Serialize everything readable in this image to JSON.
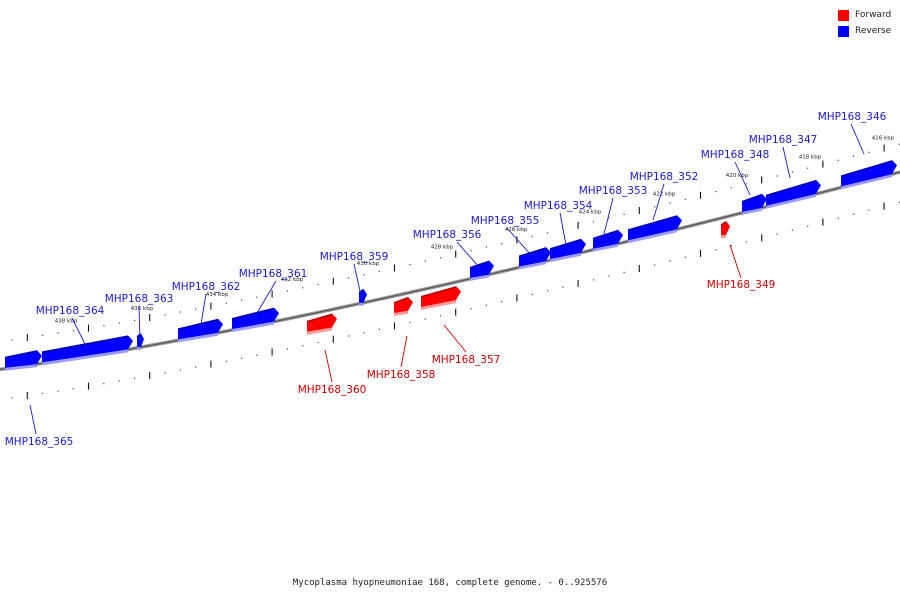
{
  "legend": {
    "forward_label": "Forward",
    "reverse_label": "Reverse",
    "forward_color": "#ff0000",
    "reverse_color": "#0000ff"
  },
  "caption": "Mycoplasma hyopneumoniae 168, complete genome. - 0..925576",
  "ticks": [
    {
      "label": "416 kbp"
    },
    {
      "label": "418 kbp"
    },
    {
      "label": "420 kbp"
    },
    {
      "label": "422 kbp"
    },
    {
      "label": "424 kbp"
    },
    {
      "label": "426 kbp"
    },
    {
      "label": "428 kbp"
    },
    {
      "label": "430 kbp"
    },
    {
      "label": "432 kbp"
    },
    {
      "label": "434 kbp"
    },
    {
      "label": "436 kbp"
    },
    {
      "label": "438 kbp"
    }
  ],
  "genes": [
    {
      "name": "MHP168_346",
      "strand": "reverse"
    },
    {
      "name": "MHP168_347",
      "strand": "reverse"
    },
    {
      "name": "MHP168_348",
      "strand": "reverse"
    },
    {
      "name": "MHP168_349",
      "strand": "forward"
    },
    {
      "name": "MHP168_352",
      "strand": "reverse"
    },
    {
      "name": "MHP168_353",
      "strand": "reverse"
    },
    {
      "name": "MHP168_354",
      "strand": "reverse"
    },
    {
      "name": "MHP168_355",
      "strand": "reverse"
    },
    {
      "name": "MHP168_356",
      "strand": "reverse"
    },
    {
      "name": "MHP168_357",
      "strand": "forward"
    },
    {
      "name": "MHP168_358",
      "strand": "forward"
    },
    {
      "name": "MHP168_359",
      "strand": "reverse"
    },
    {
      "name": "MHP168_360",
      "strand": "forward"
    },
    {
      "name": "MHP168_361",
      "strand": "reverse"
    },
    {
      "name": "MHP168_362",
      "strand": "reverse"
    },
    {
      "name": "MHP168_363",
      "strand": "reverse"
    },
    {
      "name": "MHP168_364",
      "strand": "reverse"
    },
    {
      "name": "MHP168_365",
      "strand": "reverse"
    }
  ]
}
